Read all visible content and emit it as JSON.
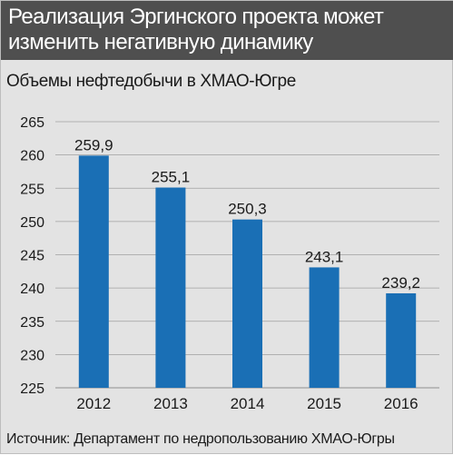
{
  "header": {
    "title_line1": "Реализация Эргинского проекта может",
    "title_line2": "изменить негативную динамику"
  },
  "subtitle": "Объемы нефтедобычи в ХМАО-Югре",
  "source": "Источник: Департамент по недропользованию ХМАО-Югры",
  "colors": {
    "bar": "#1a6fb5",
    "header_bg": "#4f4f4f",
    "plot_bg": "#e3e3e3",
    "grid": "#a0a0a0"
  },
  "chart_data": {
    "type": "bar",
    "categories": [
      "2012",
      "2013",
      "2014",
      "2015",
      "2016"
    ],
    "values": [
      259.9,
      255.1,
      250.3,
      243.1,
      239.2
    ],
    "value_labels": [
      "259,9",
      "255,1",
      "250,3",
      "243,1",
      "239,2"
    ],
    "ylim": [
      225,
      265
    ],
    "yticks": [
      "225",
      "230",
      "235",
      "240",
      "245",
      "250",
      "255",
      "260",
      "265"
    ],
    "grid": true,
    "title": "Объемы нефтедобычи в ХМАО-Югре",
    "xlabel": "",
    "ylabel": ""
  }
}
